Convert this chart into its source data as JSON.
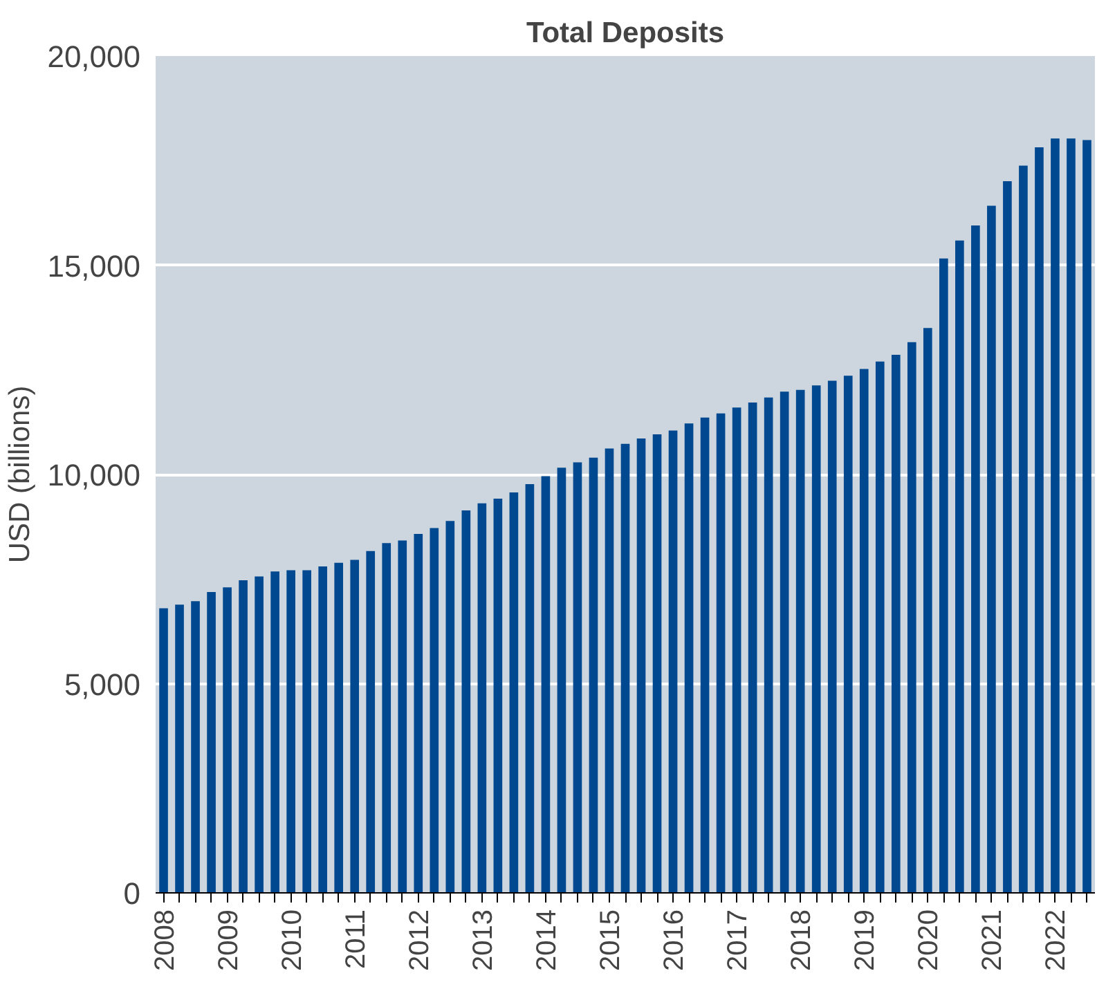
{
  "chart_data": {
    "type": "bar",
    "title": "Total Deposits",
    "ylabel": "USD (billions)",
    "categories": [
      "2008",
      null,
      null,
      null,
      "2009",
      null,
      null,
      null,
      "2010",
      null,
      null,
      null,
      "2011",
      null,
      null,
      null,
      "2012",
      null,
      null,
      null,
      "2013",
      null,
      null,
      null,
      "2014",
      null,
      null,
      null,
      "2015",
      null,
      null,
      null,
      "2016",
      null,
      null,
      null,
      "2017",
      null,
      null,
      null,
      "2018",
      null,
      null,
      null,
      "2019",
      null,
      null,
      null,
      "2020",
      null,
      null,
      null,
      "2021",
      null,
      null,
      null,
      "2022",
      null,
      null
    ],
    "values": [
      6800,
      6890,
      6970,
      7190,
      7300,
      7470,
      7560,
      7680,
      7710,
      7710,
      7800,
      7890,
      7960,
      8170,
      8360,
      8420,
      8580,
      8720,
      8890,
      9140,
      9310,
      9420,
      9570,
      9770,
      9960,
      10160,
      10290,
      10400,
      10620,
      10730,
      10860,
      10960,
      11050,
      11220,
      11360,
      11460,
      11600,
      11720,
      11840,
      11980,
      12020,
      12130,
      12240,
      12360,
      12520,
      12700,
      12860,
      13160,
      13500,
      15160,
      15590,
      15950,
      16420,
      17010,
      17380,
      17820,
      18030,
      18030,
      17990
    ],
    "color": "#004990",
    "ylim": [
      0,
      20000
    ],
    "yticks": [
      {
        "value": 0,
        "label": "0"
      },
      {
        "value": 5000,
        "label": "5,000"
      },
      {
        "value": 10000,
        "label": "10,000"
      },
      {
        "value": 15000,
        "label": "15,000"
      },
      {
        "value": 20000,
        "label": "20,000"
      }
    ],
    "grid": "y"
  }
}
